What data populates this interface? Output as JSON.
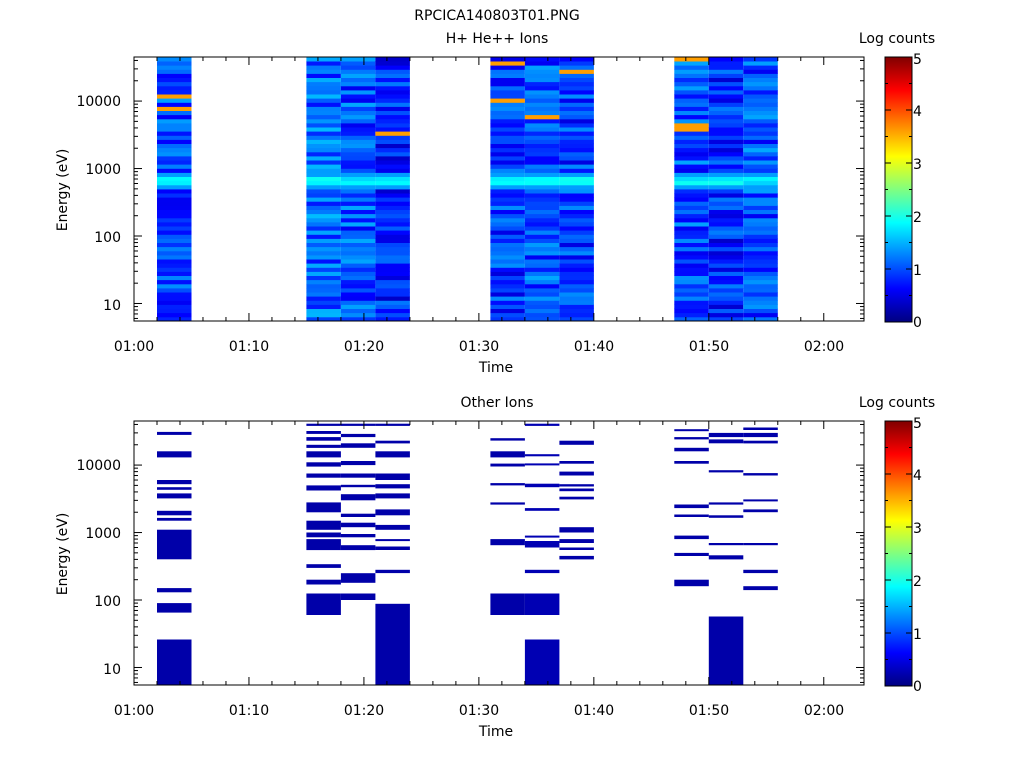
{
  "figure_title": "RPCICA140803T01.PNG",
  "colors": {
    "colormap": [
      "#000080",
      "#0000ff",
      "#0080ff",
      "#00ffff",
      "#80ff80",
      "#ffff00",
      "#ff8000",
      "#ff0000",
      "#800000"
    ],
    "background": "#ffffff",
    "axis": "#000000"
  },
  "chart_data": [
    {
      "type": "heatmap",
      "title": "H+ He++ Ions",
      "xlabel": "Time",
      "ylabel": "Energy (eV)",
      "colorbar_label": "Log counts",
      "colorbar_ticks": [
        "0",
        "1",
        "2",
        "3",
        "4",
        "5"
      ],
      "clim": [
        0,
        5
      ],
      "x_ticks": [
        "01:00",
        "01:10",
        "01:20",
        "01:30",
        "01:40",
        "01:50",
        "02:00"
      ],
      "xlim_minutes": [
        0,
        63.5
      ],
      "y_ticks": [
        "10",
        "100",
        "1000",
        "10000"
      ],
      "y_scale": "log",
      "ylim": [
        5.5,
        45000
      ],
      "sweeps": [
        {
          "start": "01:02",
          "end": "01:05",
          "level": 1.0
        },
        {
          "start": "01:15",
          "end": "01:18",
          "level": 1.1
        },
        {
          "start": "01:18",
          "end": "01:21",
          "level": 1.0
        },
        {
          "start": "01:21",
          "end": "01:24",
          "level": 0.8
        },
        {
          "start": "01:31",
          "end": "01:34",
          "level": 0.9
        },
        {
          "start": "01:34",
          "end": "01:37",
          "level": 1.0
        },
        {
          "start": "01:37",
          "end": "01:40",
          "level": 0.9
        },
        {
          "start": "01:47",
          "end": "01:50",
          "level": 1.0
        },
        {
          "start": "01:50",
          "end": "01:53",
          "level": 0.8
        },
        {
          "start": "01:53",
          "end": "01:56",
          "level": 1.0
        }
      ],
      "peak_energy_eV": 650,
      "peak_level": 1.8
    },
    {
      "type": "heatmap",
      "title": "Other Ions",
      "xlabel": "Time",
      "ylabel": "Energy (eV)",
      "colorbar_label": "Log counts",
      "colorbar_ticks": [
        "0",
        "1",
        "2",
        "3",
        "4",
        "5"
      ],
      "clim": [
        0,
        5
      ],
      "x_ticks": [
        "01:00",
        "01:10",
        "01:20",
        "01:30",
        "01:40",
        "01:50",
        "02:00"
      ],
      "xlim_minutes": [
        0,
        63.5
      ],
      "y_ticks": [
        "10",
        "100",
        "1000",
        "10000"
      ],
      "y_scale": "log",
      "ylim": [
        5.5,
        45000
      ],
      "sweeps": [
        {
          "start": "01:02",
          "end": "01:05",
          "level": 0.2,
          "bands_eV": [
            [
              28000,
              31000
            ],
            [
              13000,
              16000
            ],
            [
              5200,
              6000
            ],
            [
              4300,
              4700
            ],
            [
              3200,
              3800
            ],
            [
              1800,
              2100
            ],
            [
              1500,
              1650
            ],
            [
              400,
              1100
            ],
            [
              130,
              150
            ],
            [
              65,
              90
            ],
            [
              5.5,
              26
            ]
          ]
        },
        {
          "start": "01:15",
          "end": "01:18",
          "level": 0.2,
          "bands_eV": [
            [
              38000,
              41000
            ],
            [
              29000,
              32000
            ],
            [
              23000,
              26000
            ],
            [
              18000,
              20000
            ],
            [
              13000,
              16000
            ],
            [
              9500,
              11000
            ],
            [
              6500,
              7500
            ],
            [
              4200,
              5000
            ],
            [
              2000,
              2800
            ],
            [
              1100,
              1500
            ],
            [
              850,
              1000
            ],
            [
              550,
              800
            ],
            [
              300,
              340
            ],
            [
              170,
              200
            ],
            [
              60,
              125
            ]
          ]
        },
        {
          "start": "01:18",
          "end": "01:21",
          "level": 0.2,
          "bands_eV": [
            [
              38000,
              41000
            ],
            [
              26000,
              29000
            ],
            [
              18000,
              21000
            ],
            [
              10000,
              11500
            ],
            [
              6500,
              7500
            ],
            [
              4700,
              5100
            ],
            [
              3000,
              3700
            ],
            [
              1700,
              1900
            ],
            [
              1200,
              1400
            ],
            [
              850,
              950
            ],
            [
              550,
              650
            ],
            [
              180,
              250
            ],
            [
              100,
              125
            ]
          ]
        },
        {
          "start": "01:21",
          "end": "01:24",
          "level": 0.2,
          "bands_eV": [
            [
              38000,
              41000
            ],
            [
              21000,
              23000
            ],
            [
              13000,
              16000
            ],
            [
              6000,
              7500
            ],
            [
              4500,
              5200
            ],
            [
              3200,
              3800
            ],
            [
              1800,
              2200
            ],
            [
              1100,
              1300
            ],
            [
              750,
              800
            ],
            [
              550,
              620
            ],
            [
              250,
              280
            ],
            [
              5.5,
              88
            ]
          ]
        },
        {
          "start": "01:31",
          "end": "01:34",
          "level": 0.2,
          "bands_eV": [
            [
              23000,
              25000
            ],
            [
              13000,
              16000
            ],
            [
              9500,
              10500
            ],
            [
              5000,
              5400
            ],
            [
              2600,
              2800
            ],
            [
              650,
              800
            ],
            [
              60,
              125
            ]
          ]
        },
        {
          "start": "01:34",
          "end": "01:37",
          "level": 0.25,
          "bands_eV": [
            [
              38000,
              41000
            ],
            [
              13500,
              14500
            ],
            [
              10000,
              10600
            ],
            [
              4700,
              5300
            ],
            [
              2100,
              2300
            ],
            [
              850,
              900
            ],
            [
              600,
              750
            ],
            [
              250,
              280
            ],
            [
              5.5,
              26
            ],
            [
              60,
              125
            ]
          ]
        },
        {
          "start": "01:37",
          "end": "01:40",
          "level": 0.2,
          "bands_eV": [
            [
              20000,
              23000
            ],
            [
              10500,
              11500
            ],
            [
              7000,
              8000
            ],
            [
              4800,
              5200
            ],
            [
              4100,
              4500
            ],
            [
              3100,
              3400
            ],
            [
              1000,
              1200
            ],
            [
              700,
              800
            ],
            [
              550,
              600
            ],
            [
              400,
              450
            ]
          ]
        },
        {
          "start": "01:47",
          "end": "01:50",
          "level": 0.2,
          "bands_eV": [
            [
              32000,
              34000
            ],
            [
              24000,
              26000
            ],
            [
              16000,
              18000
            ],
            [
              10500,
              11500
            ],
            [
              2300,
              2600
            ],
            [
              1700,
              1850
            ],
            [
              800,
              900
            ],
            [
              450,
              500
            ],
            [
              160,
              200
            ]
          ]
        },
        {
          "start": "01:50",
          "end": "01:53",
          "level": 0.2,
          "bands_eV": [
            [
              26000,
              30000
            ],
            [
              21000,
              24000
            ],
            [
              7800,
              8400
            ],
            [
              2600,
              2800
            ],
            [
              1650,
              1800
            ],
            [
              650,
              700
            ],
            [
              400,
              460
            ],
            [
              5.5,
              57
            ]
          ]
        },
        {
          "start": "01:53",
          "end": "01:56",
          "level": 0.2,
          "bands_eV": [
            [
              33000,
              36000
            ],
            [
              26000,
              30000
            ],
            [
              21000,
              23000
            ],
            [
              7000,
              7600
            ],
            [
              2900,
              3100
            ],
            [
              2000,
              2200
            ],
            [
              650,
              700
            ],
            [
              250,
              280
            ],
            [
              140,
              160
            ]
          ]
        }
      ]
    }
  ]
}
